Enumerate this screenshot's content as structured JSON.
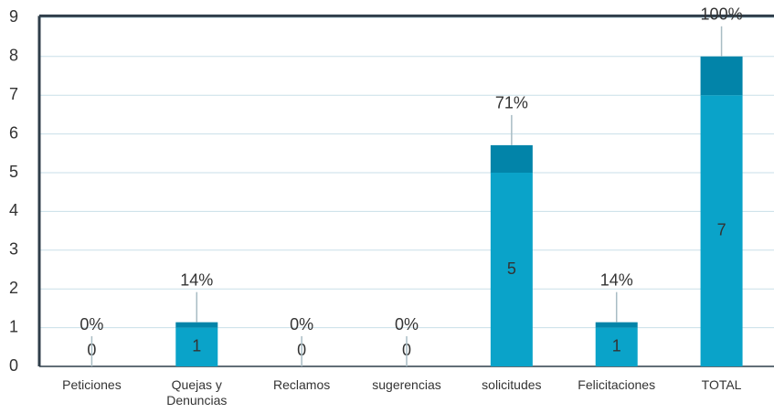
{
  "chart_data": {
    "type": "stacked_bar",
    "categories": [
      "Peticiones",
      "Quejas y Denuncias",
      "Reclamos",
      "sugerencias",
      "solicitudes",
      "Felicitaciones",
      "TOTAL"
    ],
    "series": [
      {
        "color": "#0aa3c9",
        "values": [
          0,
          1,
          0,
          0,
          5,
          1,
          7
        ]
      },
      {
        "color": "#0284a9",
        "values": [
          0,
          0.14,
          0,
          0,
          0.71,
          0.14,
          1
        ],
        "value_labels": [
          "0%",
          "14%",
          "0%",
          "0%",
          "71%",
          "14%",
          "100%"
        ]
      }
    ],
    "ylim": [
      0,
      9
    ],
    "yticks": [
      0,
      1,
      2,
      3,
      4,
      5,
      6,
      7,
      8,
      9
    ],
    "grid": true
  }
}
